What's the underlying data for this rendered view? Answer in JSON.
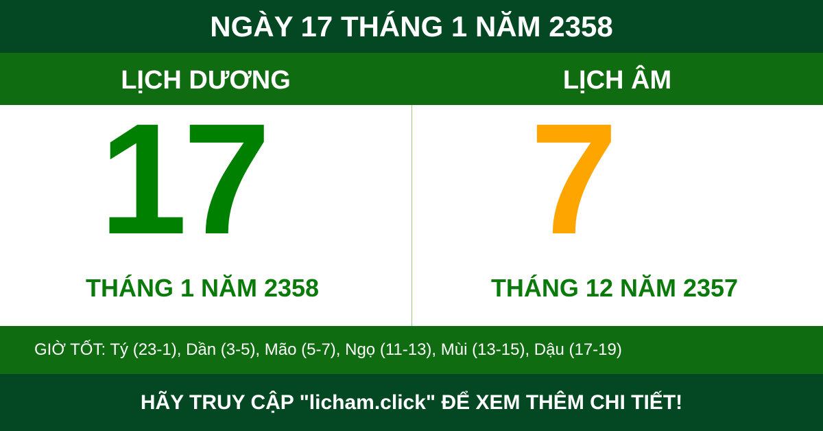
{
  "title": "NGÀY 17 THÁNG 1 NĂM 2358",
  "solar": {
    "heading": "LỊCH DƯƠNG",
    "day": "17",
    "month_year": "THÁNG 1 NĂM 2358"
  },
  "lunar": {
    "heading": "LỊCH ÂM",
    "day": "7",
    "month_year": "THÁNG 12 NĂM 2357"
  },
  "good_hours": "GIỜ TỐT: Tý (23-1), Dần (3-5), Mão (5-7), Ngọ (11-13), Mùi (13-15), Dậu (17-19)",
  "footer": "HÃY TRUY CẬP \"licham.click\" ĐỂ XEM THÊM CHI TIẾT!",
  "colors": {
    "dark_green": "#034822",
    "mid_green": "#106c10",
    "solar_number": "#008000",
    "lunar_number": "#ffa500"
  }
}
